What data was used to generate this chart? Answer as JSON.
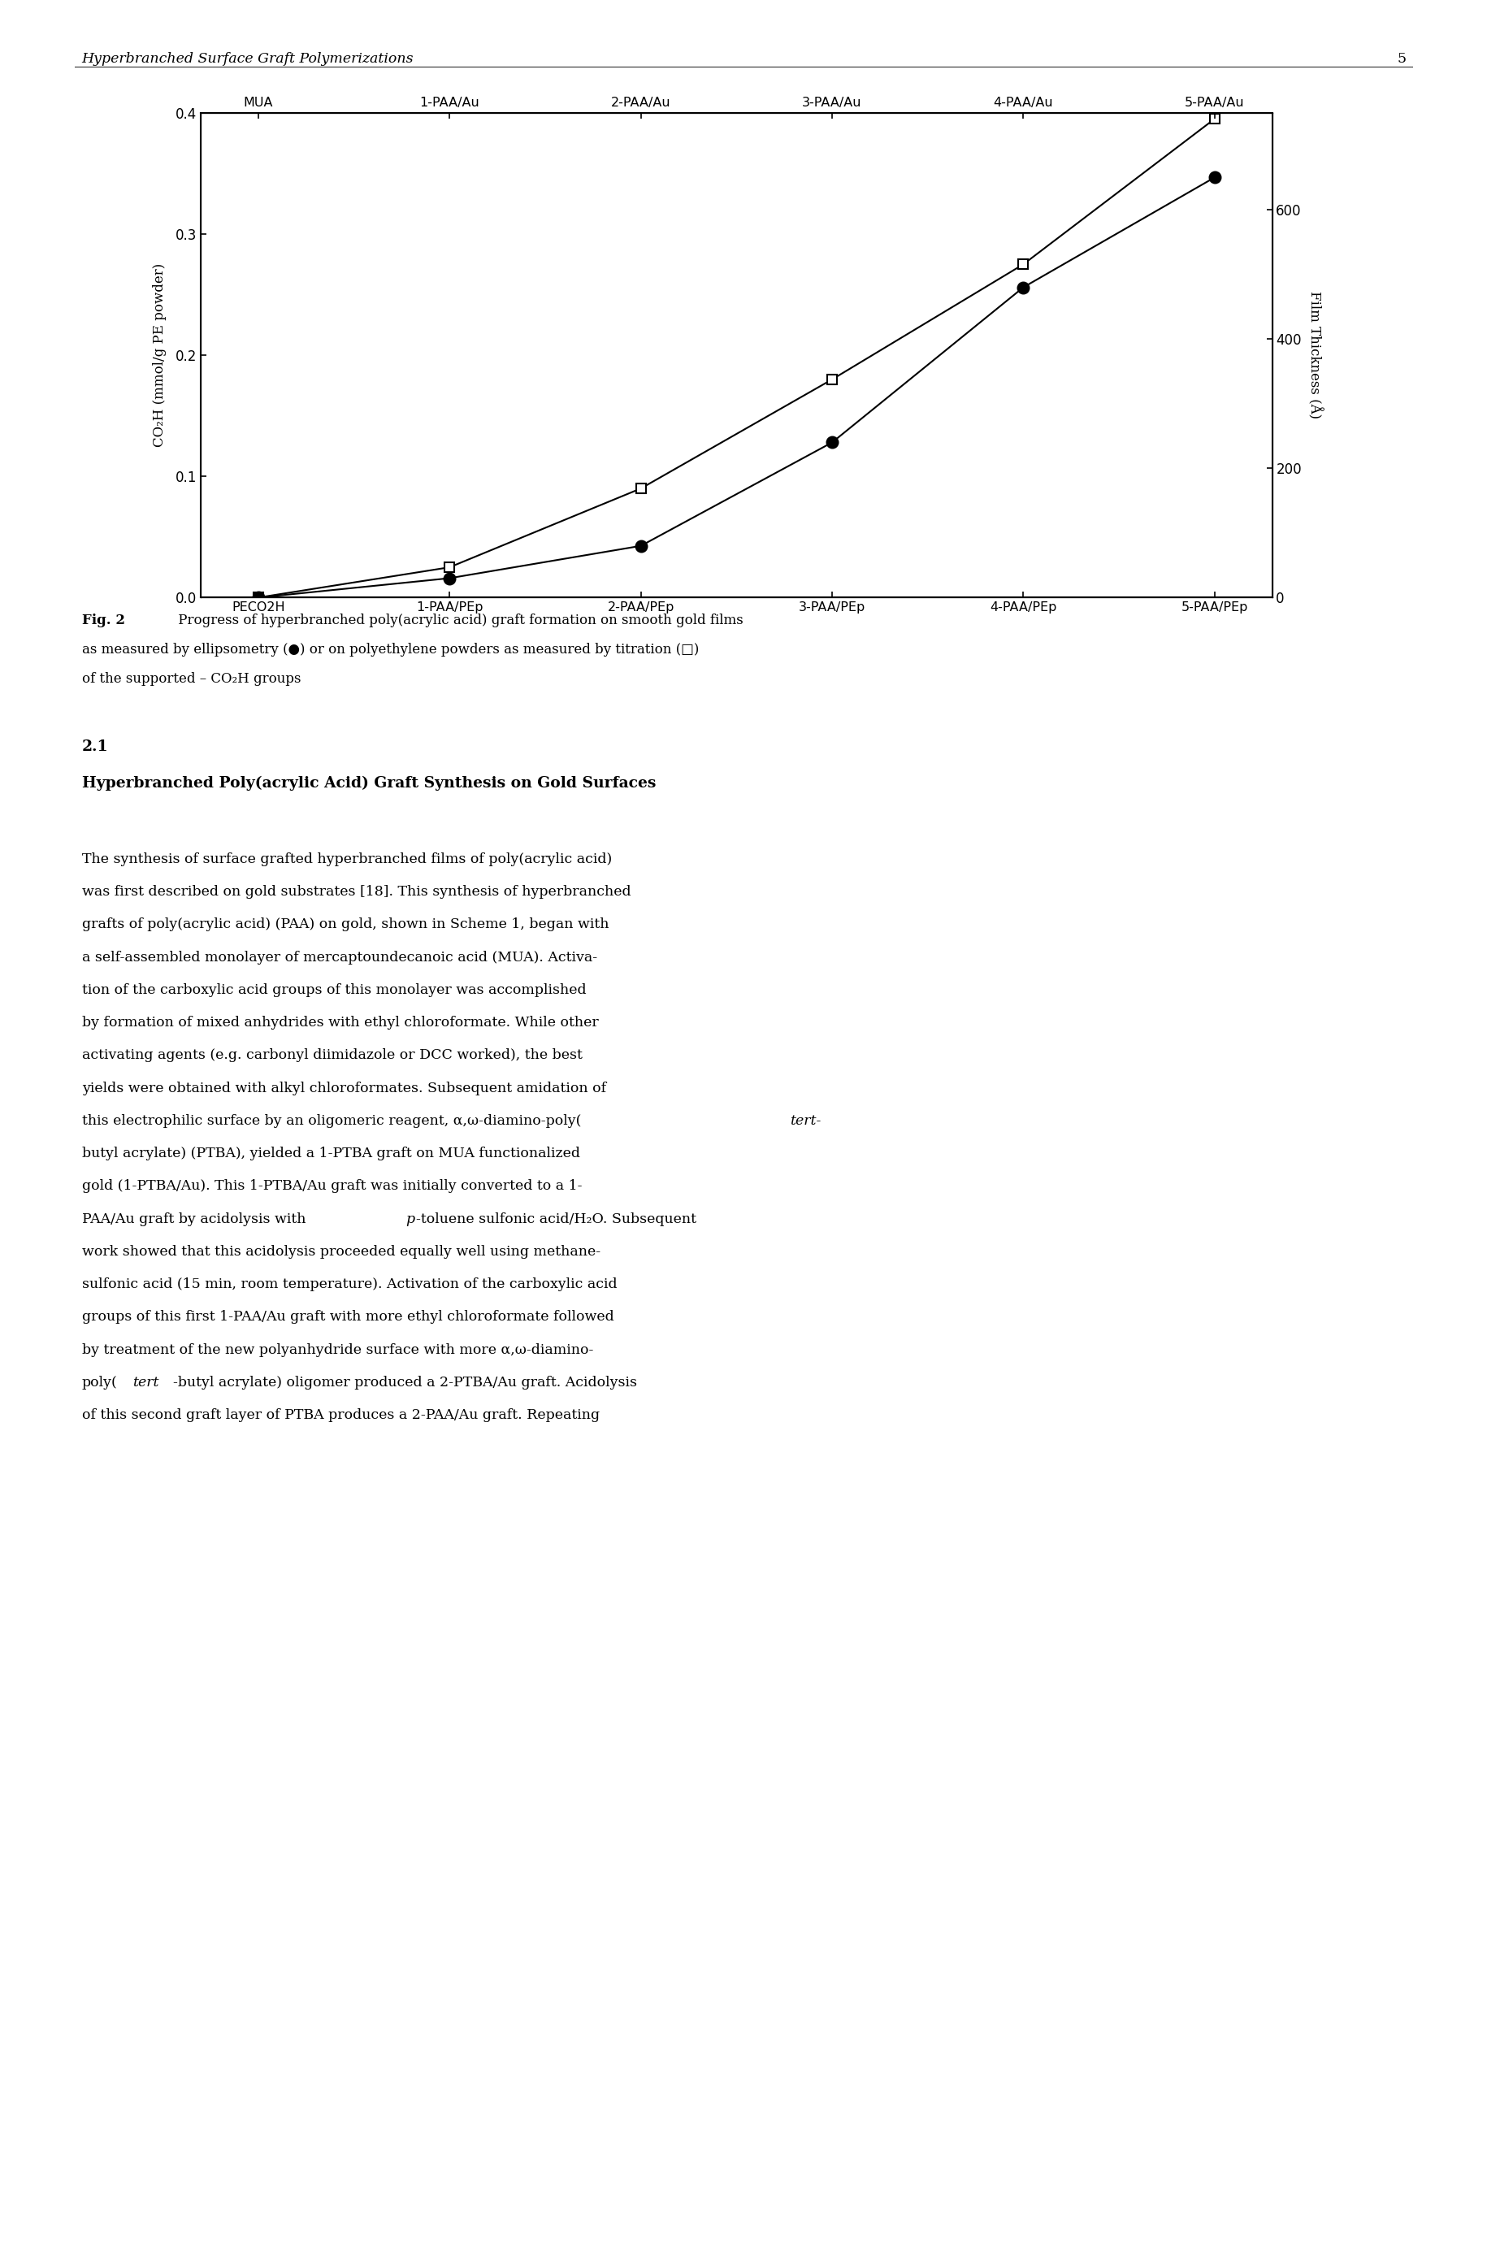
{
  "top_x_labels": [
    "MUA",
    "1-PAA/Au",
    "2-PAA/Au",
    "3-PAA/Au",
    "4-PAA/Au",
    "5-PAA/Au"
  ],
  "bottom_x_labels": [
    "PECO2H",
    "1-PAA/PEp",
    "2-PAA/PEp",
    "3-PAA/PEp",
    "4-PAA/PEp",
    "5-PAA/PEp"
  ],
  "x_values": [
    0,
    1,
    2,
    3,
    4,
    5
  ],
  "square_y": [
    0.0,
    0.025,
    0.09,
    0.18,
    0.275,
    0.395
  ],
  "circle_thickness_y": [
    0,
    30,
    80,
    240,
    480,
    650
  ],
  "ylim_left": [
    0.0,
    0.4
  ],
  "ylim_right": [
    0,
    750
  ],
  "yticks_left": [
    0.0,
    0.1,
    0.2,
    0.3,
    0.4
  ],
  "ytick_labels_left": [
    "0.0",
    "0.1",
    "0.2",
    "0.3",
    "0.4"
  ],
  "yticks_right": [
    0,
    200,
    400,
    600
  ],
  "ytick_labels_right": [
    "0",
    "200",
    "400",
    "600"
  ],
  "ylabel_left": "CO₂H (mmol/g PE powder)",
  "ylabel_right": "Film Thickness (Å)",
  "background_color": "#ffffff",
  "header_text": "Hyperbranched Surface Graft Polymerizations",
  "page_number": "5",
  "fig2_bold": "Fig. 2",
  "fig2_normal": " Progress of hyperbranched poly(acrylic acid) graft formation on smooth gold films as measured by ellipsometry (●) or on polyethylene powders as measured by titration (□) of the supported – CO₂H groups",
  "section_number": "2.1",
  "section_title": "Hyperbranched Poly(acrylic Acid) Graft Synthesis on Gold Surfaces",
  "body_line1": "The synthesis of surface grafted hyperbranched films of poly(acrylic acid)",
  "body_line2": "was first described on gold substrates [18]. This synthesis of hyperbranched",
  "body_line3": "grafts of poly(acrylic acid) (PAA) on gold, shown in Scheme 1, began with",
  "body_line4": "a self-assembled monolayer of mercaptoundecanoic acid (MUA). Activa-",
  "body_line5": "tion of the carboxylic acid groups of this monolayer was accomplished",
  "body_line6": "by formation of mixed anhydrides with ethyl chloroformate. While other",
  "body_line7": "activating agents (e.g. carbonyl diimidazole or DCC worked), the best",
  "body_line8": "yields were obtained with alkyl chloroformates. Subsequent amidation of",
  "body_line9": "this electrophilic surface by an oligomeric reagent, α,ω-diamino-poly(tert-",
  "body_line10": "butyl acrylate) (PTBA), yielded a 1-PTBA graft on MUA functionalized",
  "body_line11": "gold (1-PTBA/Au). This 1-PTBA/Au graft was initially converted to a 1-",
  "body_line12": "PAA/Au graft by acidolysis with p-toluene sulfonic acid/H₂O. Subsequent",
  "body_line13": "work showed that this acidolysis proceeded equally well using methane-",
  "body_line14": "sulfonic acid (15 min, room temperature). Activation of the carboxylic acid",
  "body_line15": "groups of this first 1-PAA/Au graft with more ethyl chloroformate followed",
  "body_line16": "by treatment of the new polyanhydride surface with more α,ω-diamino-",
  "body_line17": "poly(tert-butyl acrylate) oligomer produced a 2-PTBA/Au graft. Acidolysis",
  "body_line18": "of this second graft layer of PTBA produces a 2-PAA/Au graft. Repeating"
}
